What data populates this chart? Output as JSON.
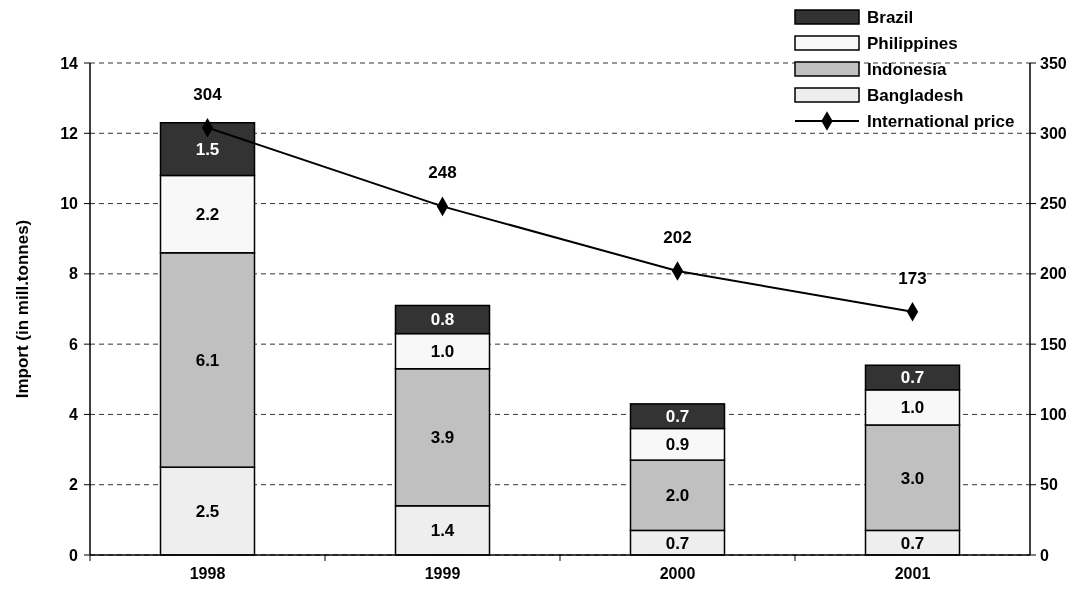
{
  "chart_data": {
    "type": "bar",
    "stacked": true,
    "ylabel": "Import (in mill.tonnes)",
    "categories": [
      "1998",
      "1999",
      "2000",
      "2001"
    ],
    "series": [
      {
        "name": "Bangladesh",
        "color": "#eeeeee",
        "values": [
          2.5,
          1.4,
          0.7,
          0.7
        ],
        "value_labels": [
          "2.5",
          "1.4",
          "0.7",
          "0.7"
        ]
      },
      {
        "name": "Indonesia",
        "color": "#c0c0c0",
        "values": [
          6.1,
          3.9,
          2.0,
          3.0
        ],
        "value_labels": [
          "6.1",
          "3.9",
          "2.0",
          "3.0"
        ]
      },
      {
        "name": "Philippines",
        "color": "#f8f8f8",
        "values": [
          2.2,
          1.0,
          0.9,
          1.0
        ],
        "value_labels": [
          "2.2",
          "1.0",
          "0.9",
          "1.0"
        ]
      },
      {
        "name": "Brazil",
        "color": "#333333",
        "values": [
          1.5,
          0.8,
          0.7,
          0.7
        ],
        "value_labels": [
          "1.5",
          "0.8",
          "0.7",
          "0.7"
        ]
      },
      {
        "name": "International price",
        "type": "line",
        "axis": "y2",
        "color": "#000000",
        "values": [
          304,
          248,
          202,
          173
        ]
      }
    ],
    "ylim": [
      0,
      14
    ],
    "yticks": [
      0,
      2,
      4,
      6,
      8,
      10,
      12,
      14
    ],
    "y2lim": [
      0,
      350
    ],
    "y2ticks": [
      0,
      50,
      100,
      150,
      200,
      250,
      300,
      350
    ],
    "grid": "y",
    "legend": "top right",
    "marker": "diamond",
    "data_labels": true
  }
}
